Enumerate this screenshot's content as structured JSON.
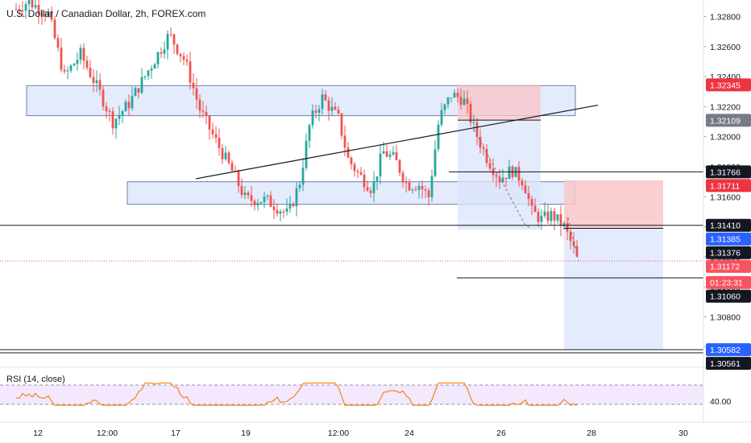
{
  "header": {
    "title": "U.S. Dollar / Canadian Dollar, 2h, FOREX.com"
  },
  "rsi": {
    "label": "RSI (14, close)",
    "value_label": "40.00"
  },
  "colors": {
    "up": "#26a69a",
    "down": "#ef5350",
    "zone_fill": "#dbe4fb",
    "zone_stroke": "#6f7fa8",
    "stop_fill": "#f8c7c9",
    "target_fill": "#dbe4fb",
    "rsi_line": "#f57c00",
    "rsi_bg": "#f3e8fd"
  },
  "chart_data": {
    "type": "candlestick",
    "ylim": [
      1.3047,
      1.3291
    ],
    "y_ticks": [
      "1.32800",
      "1.32600",
      "1.32400",
      "1.32200",
      "1.32000",
      "1.31800",
      "1.31600",
      "1.31400",
      "1.31200",
      "1.31000",
      "1.30800",
      "1.30600"
    ],
    "x_ticks": [
      "12",
      "12:00",
      "17",
      "19",
      "12:00",
      "24",
      "26",
      "28",
      "30"
    ],
    "price_tags": [
      {
        "label": "1.32345",
        "bg": "#ef3340",
        "fg": "#ffffff"
      },
      {
        "label": "1.32109",
        "bg": "#787b86",
        "fg": "#ffffff"
      },
      {
        "label": "1.31766",
        "bg": "#131722",
        "fg": "#ffffff"
      },
      {
        "label": "1.31711",
        "bg": "#ef3340",
        "fg": "#ffffff"
      },
      {
        "label": "1.31410",
        "bg": "#131722",
        "fg": "#ffffff"
      },
      {
        "label": "1.31385",
        "bg": "#2962ff",
        "fg": "#ffffff"
      },
      {
        "label": "1.31376",
        "bg": "#131722",
        "fg": "#ffffff"
      },
      {
        "label": "1.31172",
        "bg": "#f7525f",
        "fg": "#ffffff"
      },
      {
        "label": "01:23:31",
        "bg": "#f7525f",
        "fg": "#ffffff"
      },
      {
        "label": "1.31060",
        "bg": "#131722",
        "fg": "#ffffff"
      },
      {
        "label": "1.30582",
        "bg": "#2962ff",
        "fg": "#ffffff"
      },
      {
        "label": "1.30561",
        "bg": "#131722",
        "fg": "#ffffff"
      }
    ],
    "horizontal_levels": [
      1.31766,
      1.3141,
      1.3106,
      1.30582,
      1.30561
    ],
    "current_price": 1.31172,
    "supply_zone": [
      1.3234,
      1.3214
    ],
    "demand_zone": [
      1.317,
      1.3155
    ],
    "trendline": [
      [
        1.3172,
        1.3221
      ]
    ],
    "positions": [
      {
        "type": "short",
        "entry": 1.3211,
        "stop": 1.3234,
        "target": 1.3138
      },
      {
        "type": "short",
        "entry": 1.3139,
        "stop": 1.3171,
        "target": 1.3058
      }
    ],
    "rsi_levels": [
      70,
      30
    ],
    "rsi_value_mark": 40
  }
}
